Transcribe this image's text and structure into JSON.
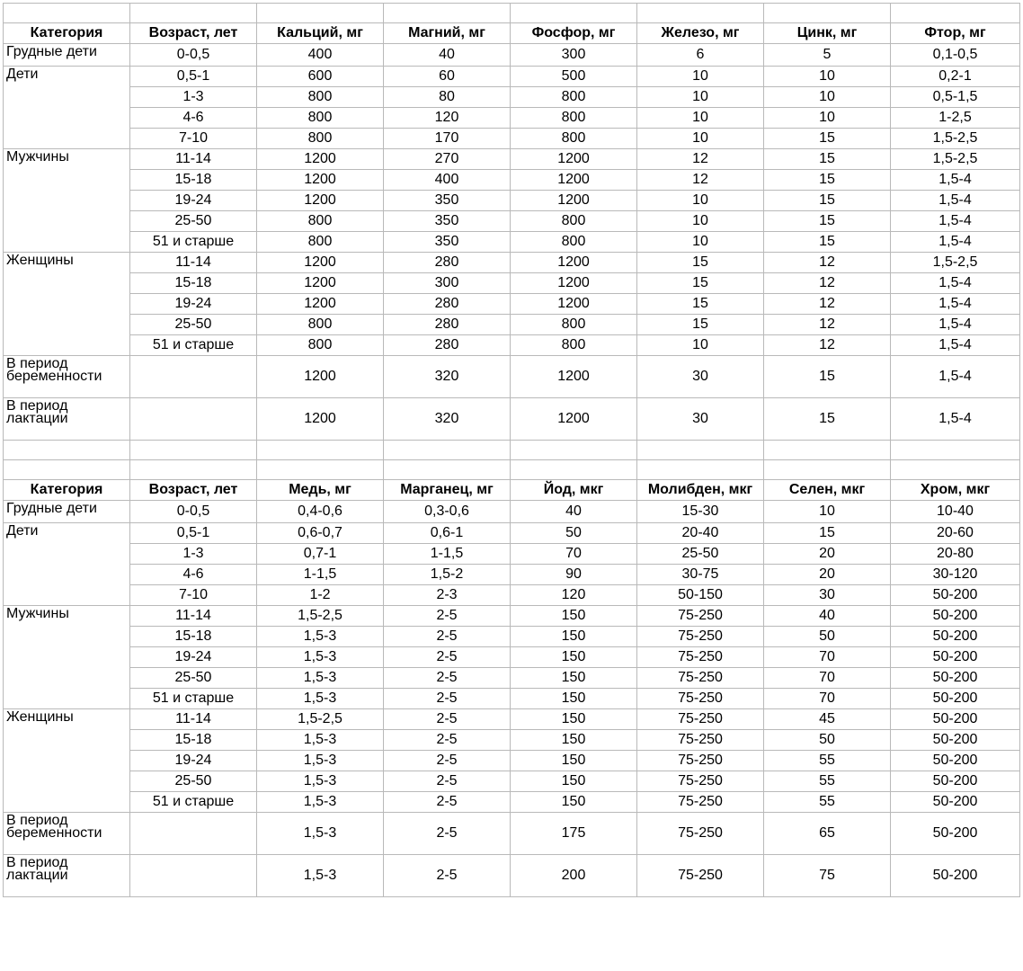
{
  "table1": {
    "headers": [
      "Категория",
      "Возраст, лет",
      "Кальций, мг",
      "Магний, мг",
      "Фосфор, мг",
      "Железо, мг",
      "Цинк, мг",
      "Фтор, мг"
    ],
    "groups": [
      {
        "category": "Грудные дети",
        "rows": [
          [
            "0-0,5",
            "400",
            "40",
            "300",
            "6",
            "5",
            "0,1-0,5"
          ]
        ]
      },
      {
        "category": "Дети",
        "rows": [
          [
            "0,5-1",
            "600",
            "60",
            "500",
            "10",
            "10",
            "0,2-1"
          ],
          [
            "1-3",
            "800",
            "80",
            "800",
            "10",
            "10",
            "0,5-1,5"
          ],
          [
            "4-6",
            "800",
            "120",
            "800",
            "10",
            "10",
            "1-2,5"
          ],
          [
            "7-10",
            "800",
            "170",
            "800",
            "10",
            "15",
            "1,5-2,5"
          ]
        ]
      },
      {
        "category": "Мужчины",
        "rows": [
          [
            "11-14",
            "1200",
            "270",
            "1200",
            "12",
            "15",
            "1,5-2,5"
          ],
          [
            "15-18",
            "1200",
            "400",
            "1200",
            "12",
            "15",
            "1,5-4"
          ],
          [
            "19-24",
            "1200",
            "350",
            "1200",
            "10",
            "15",
            "1,5-4"
          ],
          [
            "25-50",
            "800",
            "350",
            "800",
            "10",
            "15",
            "1,5-4"
          ],
          [
            "51 и старше",
            "800",
            "350",
            "800",
            "10",
            "15",
            "1,5-4"
          ]
        ]
      },
      {
        "category": "Женщины",
        "rows": [
          [
            "11-14",
            "1200",
            "280",
            "1200",
            "15",
            "12",
            "1,5-2,5"
          ],
          [
            "15-18",
            "1200",
            "300",
            "1200",
            "15",
            "12",
            "1,5-4"
          ],
          [
            "19-24",
            "1200",
            "280",
            "1200",
            "15",
            "12",
            "1,5-4"
          ],
          [
            "25-50",
            "800",
            "280",
            "800",
            "15",
            "12",
            "1,5-4"
          ],
          [
            "51 и старше",
            "800",
            "280",
            "800",
            "10",
            "12",
            "1,5-4"
          ]
        ]
      }
    ],
    "special": [
      {
        "category_line1": "В период",
        "category_line2": "беременности",
        "values": [
          "",
          "1200",
          "320",
          "1200",
          "30",
          "15",
          "1,5-4"
        ]
      },
      {
        "category_line1": "В период",
        "category_line2": "лактации",
        "values": [
          "",
          "1200",
          "320",
          "1200",
          "30",
          "15",
          "1,5-4"
        ]
      }
    ]
  },
  "table2": {
    "headers": [
      "Категория",
      "Возраст, лет",
      "Медь, мг",
      "Марганец, мг",
      "Йод, мкг",
      "Молибден, мкг",
      "Селен, мкг",
      "Хром, мкг"
    ],
    "groups": [
      {
        "category": "Грудные дети",
        "rows": [
          [
            "0-0,5",
            "0,4-0,6",
            "0,3-0,6",
            "40",
            "15-30",
            "10",
            "10-40"
          ]
        ]
      },
      {
        "category": "Дети",
        "rows": [
          [
            "0,5-1",
            "0,6-0,7",
            "0,6-1",
            "50",
            "20-40",
            "15",
            "20-60"
          ],
          [
            "1-3",
            "0,7-1",
            "1-1,5",
            "70",
            "25-50",
            "20",
            "20-80"
          ],
          [
            "4-6",
            "1-1,5",
            "1,5-2",
            "90",
            "30-75",
            "20",
            "30-120"
          ],
          [
            "7-10",
            "1-2",
            "2-3",
            "120",
            "50-150",
            "30",
            "50-200"
          ]
        ]
      },
      {
        "category": "Мужчины",
        "rows": [
          [
            "11-14",
            "1,5-2,5",
            "2-5",
            "150",
            "75-250",
            "40",
            "50-200"
          ],
          [
            "15-18",
            "1,5-3",
            "2-5",
            "150",
            "75-250",
            "50",
            "50-200"
          ],
          [
            "19-24",
            "1,5-3",
            "2-5",
            "150",
            "75-250",
            "70",
            "50-200"
          ],
          [
            "25-50",
            "1,5-3",
            "2-5",
            "150",
            "75-250",
            "70",
            "50-200"
          ],
          [
            "51 и старше",
            "1,5-3",
            "2-5",
            "150",
            "75-250",
            "70",
            "50-200"
          ]
        ]
      },
      {
        "category": "Женщины",
        "rows": [
          [
            "11-14",
            "1,5-2,5",
            "2-5",
            "150",
            "75-250",
            "45",
            "50-200"
          ],
          [
            "15-18",
            "1,5-3",
            "2-5",
            "150",
            "75-250",
            "50",
            "50-200"
          ],
          [
            "19-24",
            "1,5-3",
            "2-5",
            "150",
            "75-250",
            "55",
            "50-200"
          ],
          [
            "25-50",
            "1,5-3",
            "2-5",
            "150",
            "75-250",
            "55",
            "50-200"
          ],
          [
            "51 и старше",
            "1,5-3",
            "2-5",
            "150",
            "75-250",
            "55",
            "50-200"
          ]
        ]
      }
    ],
    "special": [
      {
        "category_line1": "В период",
        "category_line2": "беременности",
        "values": [
          "",
          "1,5-3",
          "2-5",
          "175",
          "75-250",
          "65",
          "50-200"
        ]
      },
      {
        "category_line1": "В период",
        "category_line2": "лактации",
        "values": [
          "",
          "1,5-3",
          "2-5",
          "200",
          "75-250",
          "75",
          "50-200"
        ]
      }
    ]
  }
}
